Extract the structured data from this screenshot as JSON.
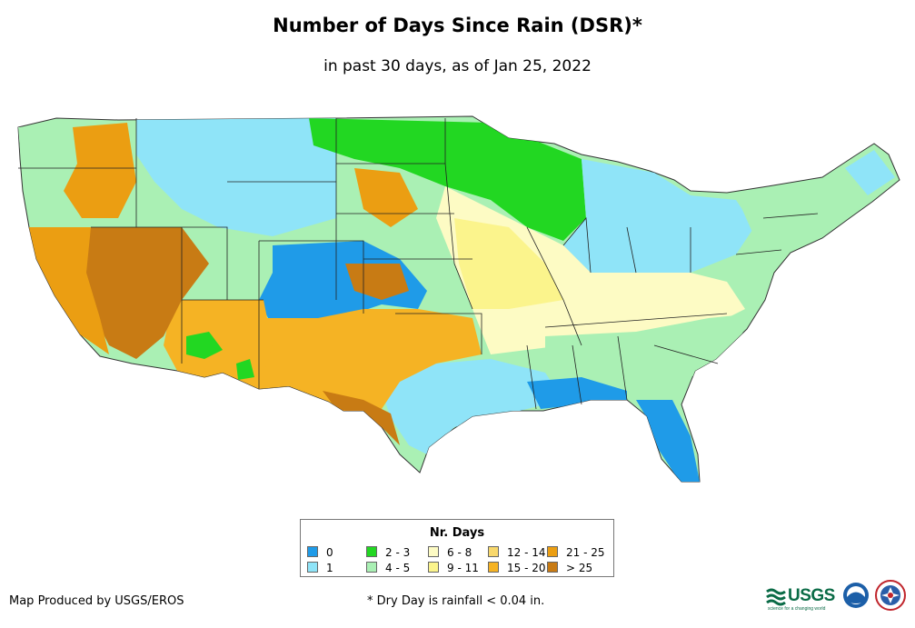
{
  "header": {
    "title": "Number of Days Since Rain (DSR)*",
    "subtitle": "in past 30 days, as of Jan 25, 2022"
  },
  "legend": {
    "title": "Nr. Days",
    "items": [
      {
        "label": "0",
        "color": "#1f9be8"
      },
      {
        "label": "1",
        "color": "#8fe4f8"
      },
      {
        "label": "2 - 3",
        "color": "#22d722"
      },
      {
        "label": "4 - 5",
        "color": "#aaf0b4"
      },
      {
        "label": "6 - 8",
        "color": "#fdfbc4"
      },
      {
        "label": "9 - 11",
        "color": "#fbf48c"
      },
      {
        "label": "12 - 14",
        "color": "#f8d86c"
      },
      {
        "label": "15 - 20",
        "color": "#f5b324"
      },
      {
        "label": "21 - 25",
        "color": "#eb9e12"
      },
      {
        "label": "> 25",
        "color": "#c87b14"
      }
    ]
  },
  "footer": {
    "credit": "Map Produced by USGS/EROS",
    "note": "* Dry Day is rainfall < 0.04 in.",
    "usgs_logo": "USGS",
    "usgs_tagline": "science for a changing world"
  },
  "icons": [
    "usgs-logo-icon",
    "noaa-logo-icon",
    "nws-logo-icon"
  ]
}
